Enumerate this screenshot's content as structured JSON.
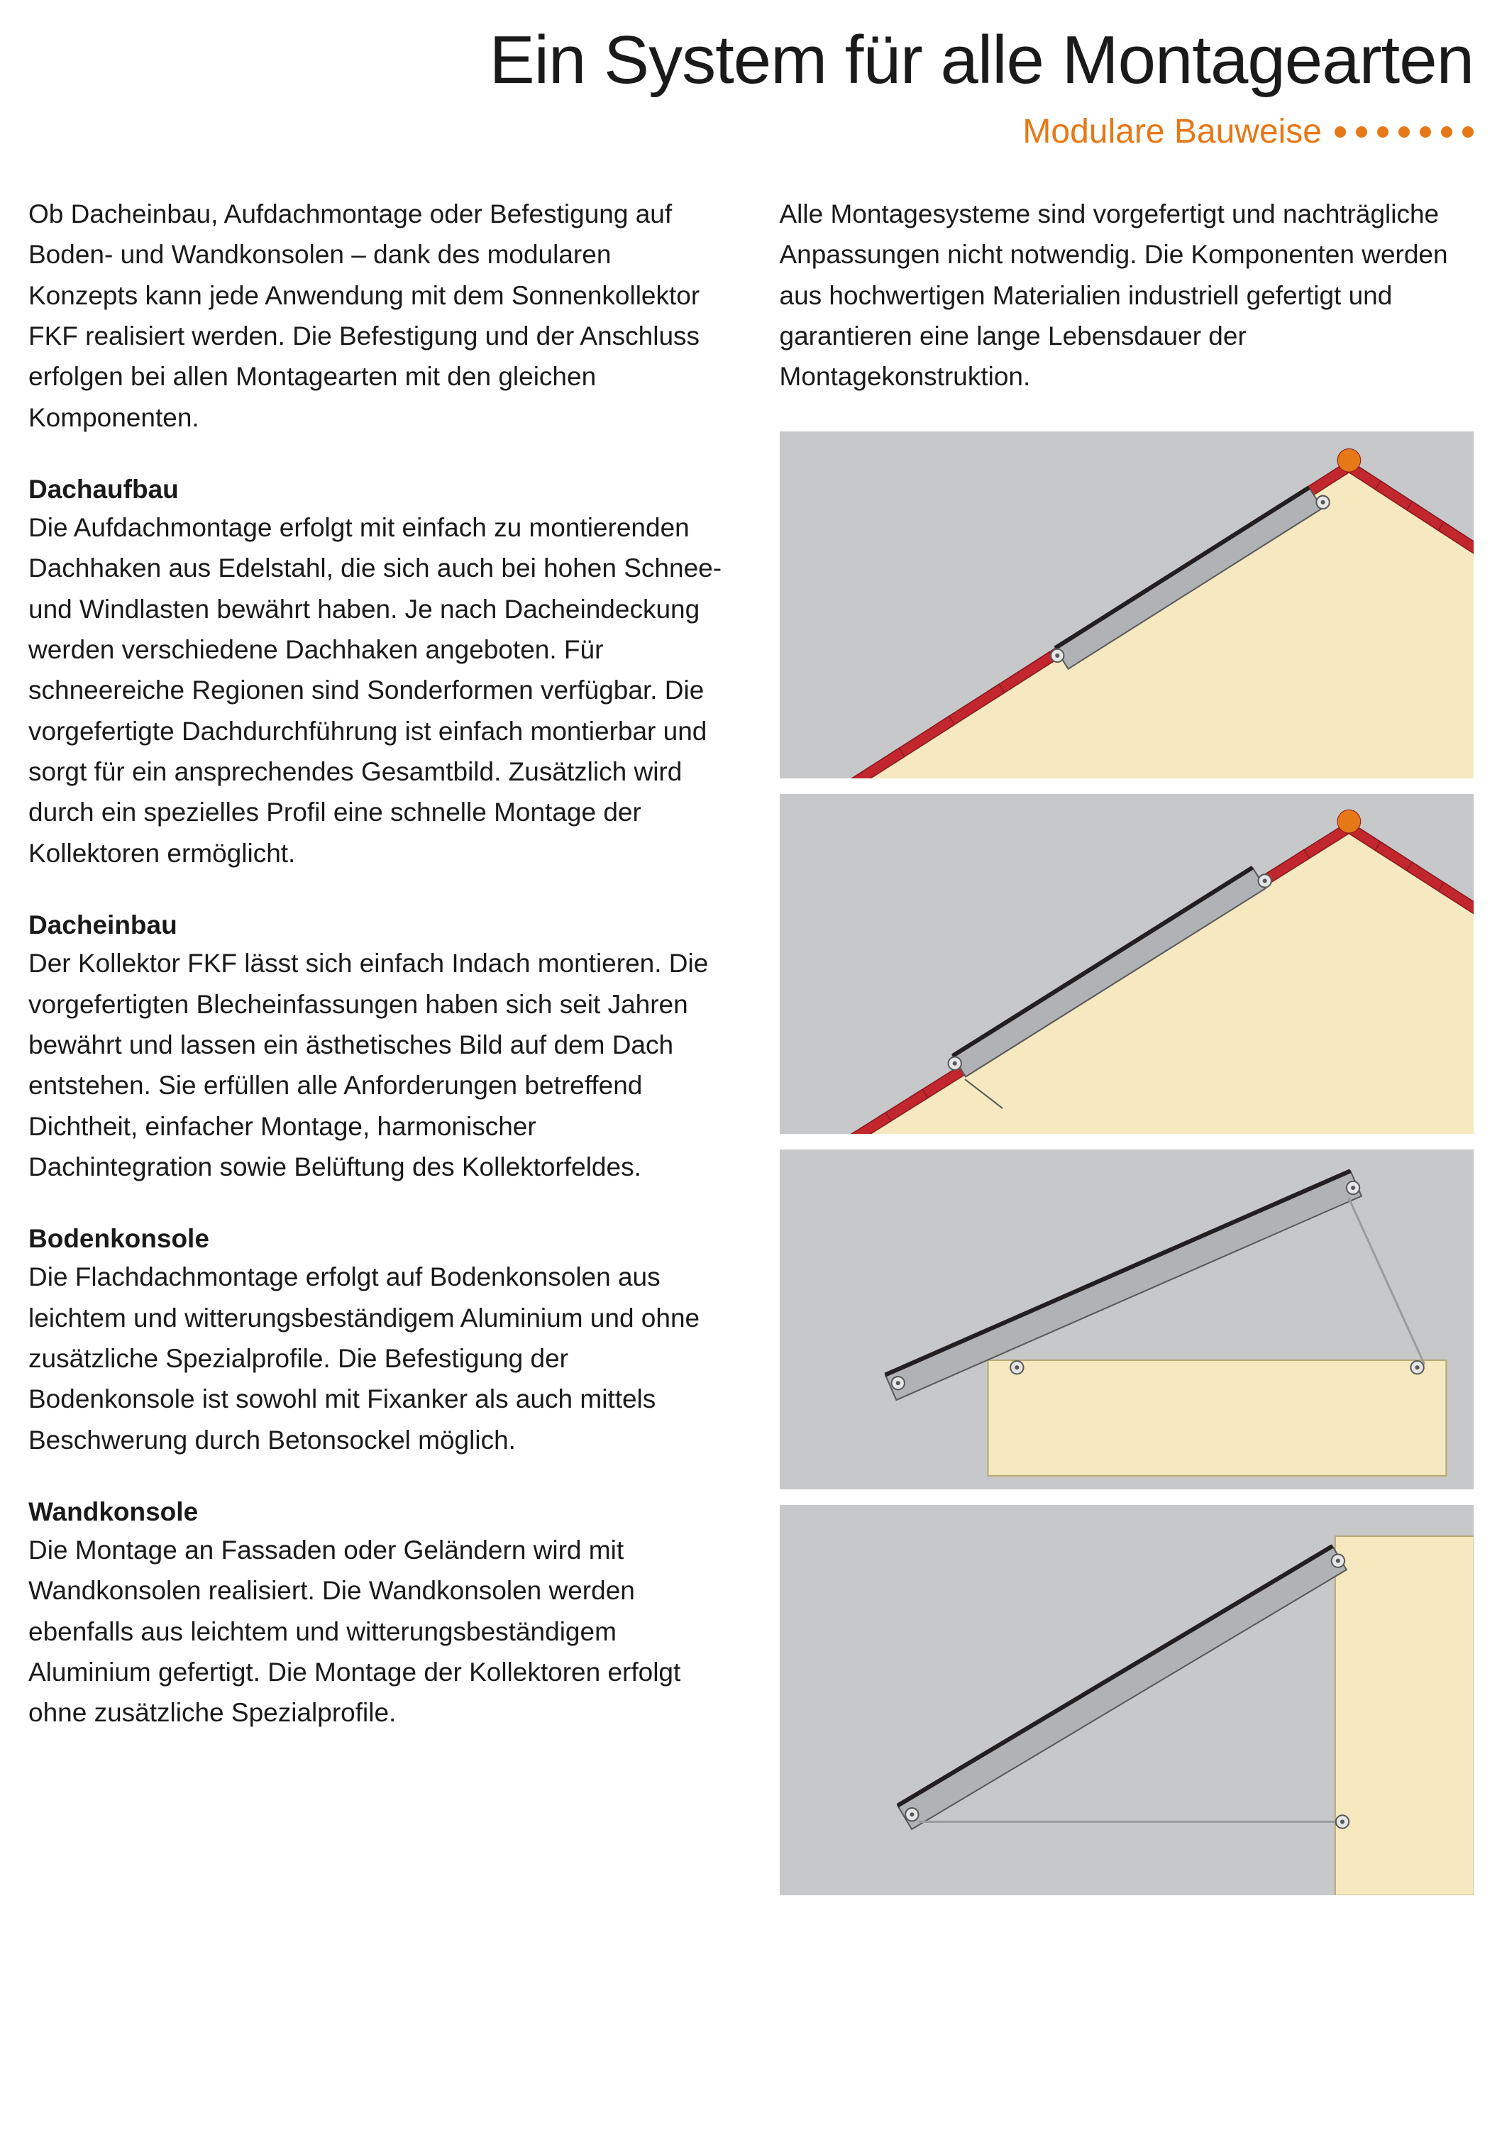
{
  "header": {
    "title": "Ein System für alle Montagearten",
    "subtitle": "Modulare Bauweise",
    "dot_count": 7,
    "dot_color": "#e67817",
    "subtitle_color": "#e67817",
    "title_fontsize": 96,
    "subtitle_fontsize": 48
  },
  "intro_left": "Ob Dacheinbau, Aufdachmontage oder Befestigung auf Boden- und Wandkonsolen – dank des modularen Konzepts kann jede Anwendung mit dem Sonnenkollektor FKF realisiert werden. Die Befestigung und der Anschluss erfolgen bei allen Montagearten mit den gleichen Komponenten.",
  "intro_right": "Alle Montagesysteme sind vorgefertigt und nachträgliche Anpassungen nicht notwendig. Die Komponenten werden aus hochwertigen Materialien industriell gefertigt und garantieren eine lange Lebensdauer der Montagekonstruktion.",
  "sections": [
    {
      "title": "Dachaufbau",
      "body": "Die Aufdachmontage erfolgt mit einfach zu montierenden Dachhaken aus Edelstahl, die sich auch bei hohen Schnee- und Windlasten bewährt haben. Je nach Dacheindeckung werden verschiedene Dachhaken angeboten. Für schneereiche Regionen sind Sonderformen verfügbar. Die vorgefertigte Dachdurchführung ist einfach montierbar und sorgt für ein ansprechendes Gesamtbild. Zusätzlich wird durch ein spezielles Profil eine schnelle Montage der Kollektoren ermöglicht."
    },
    {
      "title": "Dacheinbau",
      "body": "Der Kollektor FKF lässt sich einfach Indach montieren. Die vorgefertigten Blecheinfassungen haben sich seit Jahren bewährt und lassen ein ästhetisches Bild auf dem Dach entstehen. Sie erfüllen alle Anforderungen betreffend Dichtheit, einfacher Montage, harmonischer Dachintegration sowie Belüftung des Kollektorfeldes."
    },
    {
      "title": "Bodenkonsole",
      "body": "Die Flachdachmontage erfolgt auf Bodenkonsolen aus leichtem und witterungsbeständigem Aluminium und ohne zusätzliche Spezialprofile. Die Befestigung der Bodenkonsole ist sowohl mit Fixanker als auch mittels Beschwerung durch Betonsockel möglich."
    },
    {
      "title": "Wandkonsole",
      "body": "Die Montage an Fassaden oder Geländern wird mit Wandkonsolen realisiert. Die Wandkonsolen werden ebenfalls aus leichtem und witterungsbeständigem Aluminium gefertigt. Die Montage der Kollektoren erfolgt ohne zusätzliche Spezialprofile."
    }
  ],
  "diagrams": {
    "background": "#c7c8ca",
    "house_fill": "#f6e9c0",
    "roof_red": "#c1272d",
    "roof_dark": "#8a1a1f",
    "collector_fill": "#b0b2b5",
    "collector_stroke": "#58595b",
    "collector_dark": "#231f20",
    "bolt_stroke": "#58595b",
    "bolt_fill": "#e6e6e6",
    "ridge_color": "#e67817",
    "support_stroke": "#9b9c9e",
    "items": [
      {
        "type": "on-roof",
        "aspect_w": 960,
        "aspect_h": 480
      },
      {
        "type": "in-roof",
        "aspect_w": 960,
        "aspect_h": 470
      },
      {
        "type": "ground",
        "aspect_w": 960,
        "aspect_h": 470
      },
      {
        "type": "wall",
        "aspect_w": 960,
        "aspect_h": 540
      }
    ]
  },
  "typography": {
    "body_fontsize": 37,
    "line_height": 1.55,
    "section_title_weight": 700
  }
}
